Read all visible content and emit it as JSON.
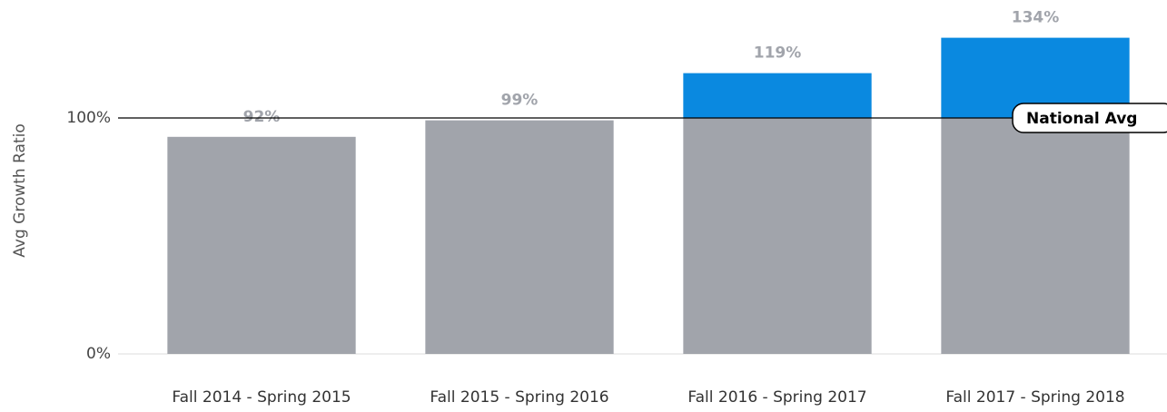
{
  "chart_data": {
    "type": "bar",
    "y_axis_label": "Avg Growth Ratio",
    "categories": [
      "Fall 2014 - Spring 2015",
      "Fall 2015 - Spring 2016",
      "Fall 2016 - Spring 2017",
      "Fall 2017 - Spring 2018"
    ],
    "values": [
      92,
      99,
      119,
      134
    ],
    "value_labels": [
      "92%",
      "99%",
      "119%",
      "134%"
    ],
    "color": "#a1a4ab",
    "above_reference_color": "#0a89e0",
    "reference_line": {
      "value": 100,
      "label": "National Avg"
    },
    "ylim": [
      0,
      150
    ],
    "yticks": [
      {
        "value": 0,
        "label": "0%"
      },
      {
        "value": 100,
        "label": "100%"
      }
    ],
    "grid": true
  }
}
